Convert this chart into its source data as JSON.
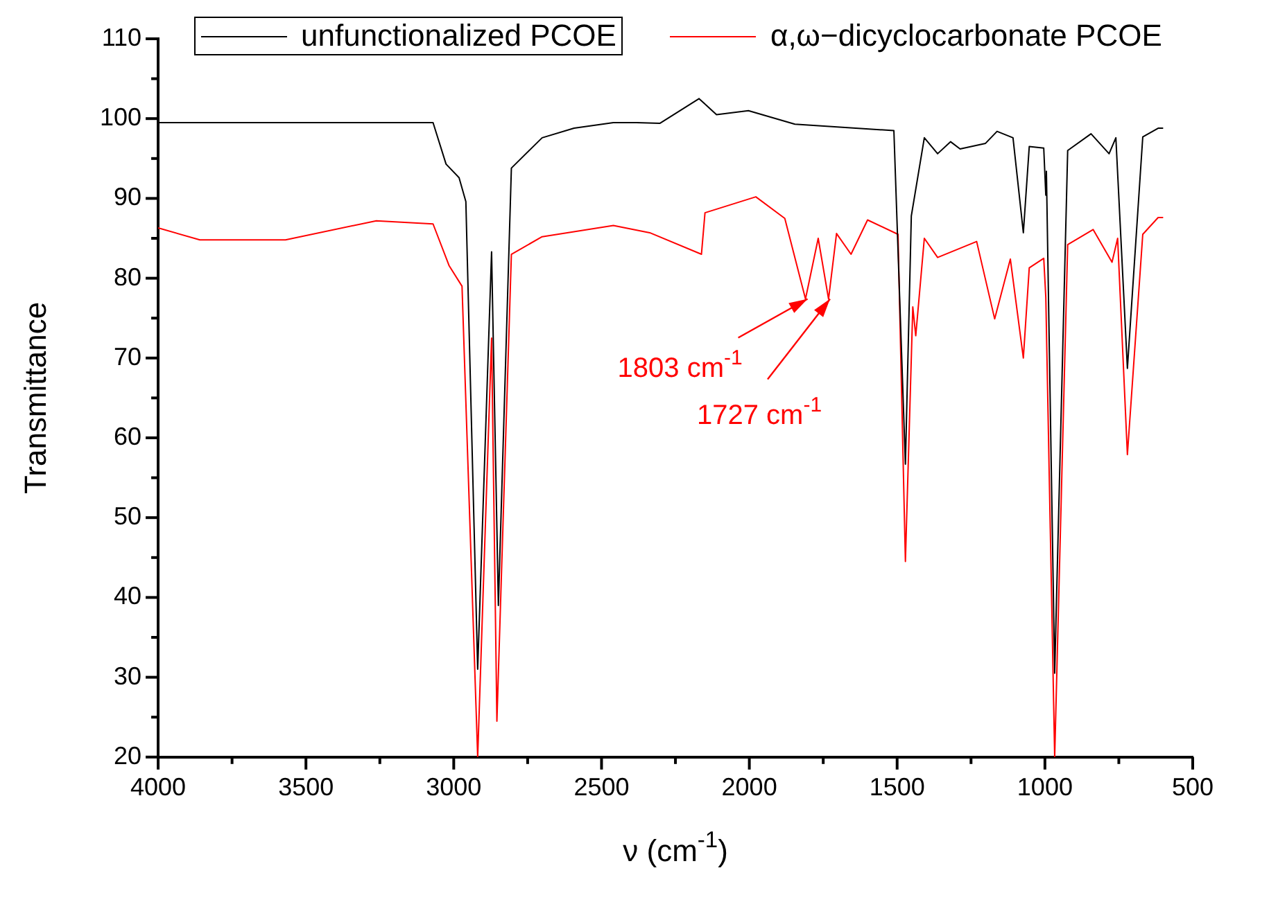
{
  "chart_data": {
    "type": "line",
    "xlabel": "ν (cm$^{-1}$)",
    "ylabel": "Transmittance",
    "xlim": [
      4000,
      500
    ],
    "ylim": [
      20,
      110
    ],
    "xticks": [
      4000,
      {
        "value": 3750,
        "label": null
      },
      3500,
      {
        "value": 3250,
        "label": null
      },
      3000,
      {
        "value": 2750,
        "label": null
      },
      2500,
      {
        "value": 2250,
        "label": null
      },
      2000,
      {
        "value": 1750,
        "label": null
      },
      1500,
      {
        "value": 1250,
        "label": null
      },
      1000,
      {
        "value": 750,
        "label": null
      },
      500
    ],
    "yticks": [
      20,
      {
        "value": 25,
        "label": null
      },
      30,
      {
        "value": 35,
        "label": null
      },
      40,
      {
        "value": 45,
        "label": null
      },
      50,
      {
        "value": 55,
        "label": null
      },
      60,
      {
        "value": 65,
        "label": null
      },
      70,
      {
        "value": 75,
        "label": null
      },
      80,
      {
        "value": 85,
        "label": null
      },
      90,
      {
        "value": 95,
        "label": null
      },
      100,
      {
        "value": 105,
        "label": null
      },
      110
    ],
    "grid": false,
    "legend": "top",
    "marker": "none",
    "line_style": "solid",
    "series": [
      {
        "name": "unfunctionalized PCOE",
        "color": "#000000",
        "x": [
          4000,
          3070,
          3026,
          2982,
          2959,
          2919,
          2872,
          2849,
          2805,
          2701,
          2593,
          2460,
          2382,
          2303,
          2170,
          2111,
          2003,
          1846,
          1511,
          1472,
          1452,
          1408,
          1363,
          1319,
          1287,
          1201,
          1162,
          1108,
          1073,
          1053,
          1004,
          997,
          995,
          967,
          923,
          844,
          783,
          760,
          721,
          669,
          617,
          600
        ],
        "values": [
          99.5,
          99.5,
          94.3,
          92.6,
          89.6,
          31,
          83.3,
          39,
          93.8,
          97.6,
          98.8,
          99.5,
          99.5,
          99.4,
          102.5,
          100.5,
          101,
          99.3,
          98.5,
          56.7,
          87.8,
          97.6,
          95.6,
          97.1,
          96.2,
          96.9,
          98.4,
          97.6,
          85.7,
          96.5,
          96.3,
          90.4,
          93.4,
          30.5,
          96,
          98.1,
          95.6,
          97.6,
          68.7,
          97.7,
          98.8,
          98.8
        ]
      },
      {
        "name": "α,ω−dicyclocarbonate PCOE",
        "color": "#ff0000",
        "x": [
          4000,
          3859,
          3569,
          3262,
          3070,
          3016,
          2972,
          2919,
          2872,
          2854,
          2805,
          2701,
          2460,
          2337,
          2162,
          2150,
          1978,
          1880,
          1810,
          1767,
          1732,
          1705,
          1656,
          1600,
          1497,
          1472,
          1447,
          1437,
          1408,
          1363,
          1231,
          1170,
          1117,
          1073,
          1053,
          1004,
          997,
          967,
          923,
          837,
          773,
          754,
          721,
          669,
          617,
          600
        ],
        "values": [
          86.3,
          84.8,
          84.8,
          87.2,
          86.8,
          81.6,
          79,
          20,
          72.5,
          24.5,
          83,
          85.2,
          86.6,
          85.7,
          83,
          88.2,
          90.2,
          87.5,
          77.4,
          85,
          77.4,
          85.6,
          83,
          87.3,
          85.5,
          44.5,
          76.4,
          72.8,
          85,
          82.6,
          84.6,
          74.9,
          82.4,
          70,
          81.3,
          82.5,
          77.6,
          20,
          84.2,
          86.1,
          82,
          85,
          57.9,
          85.5,
          87.6,
          87.6
        ]
      }
    ],
    "annotations": [
      {
        "text": "1803 cm$^{-1}$",
        "x": 1803,
        "y": 77.4
      },
      {
        "text": "1727 cm$^{-1}$",
        "x": 1727,
        "y": 77.4
      }
    ]
  }
}
